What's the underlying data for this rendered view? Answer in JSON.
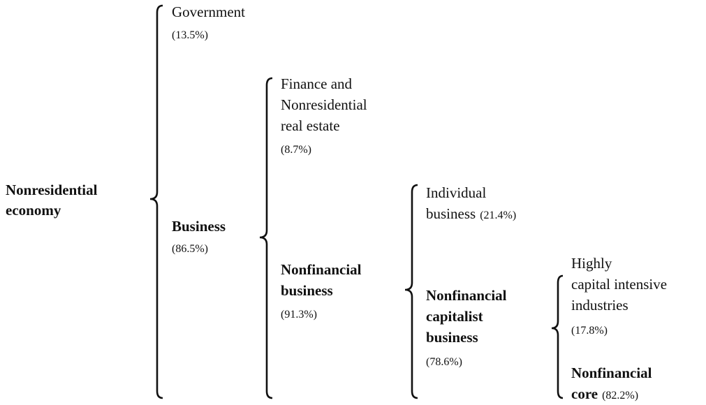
{
  "nodes": [
    {
      "lines": [
        "Nonresidential",
        "economy"
      ]
    },
    {
      "lines": [
        "Government"
      ],
      "share": "(13.5%)"
    },
    {
      "lines": [
        "Business"
      ],
      "share": "(86.5%)"
    },
    {
      "lines": [
        "Finance and",
        "Nonresidential",
        "real estate"
      ],
      "share": "(8.7%)"
    },
    {
      "lines": [
        "Nonfinancial",
        "business"
      ],
      "share": "(91.3%)"
    },
    {
      "lines": [
        "Individual",
        "business"
      ],
      "share": "(21.4%)"
    },
    {
      "lines": [
        "Nonfinancial",
        "capitalist",
        "business"
      ],
      "share": "(78.6%)"
    },
    {
      "lines": [
        "Highly",
        "capital intensive",
        "industries"
      ],
      "share": "(17.8%)"
    },
    {
      "lines": [
        "Nonfinancial",
        "core"
      ],
      "share": "(82.2%)"
    }
  ]
}
